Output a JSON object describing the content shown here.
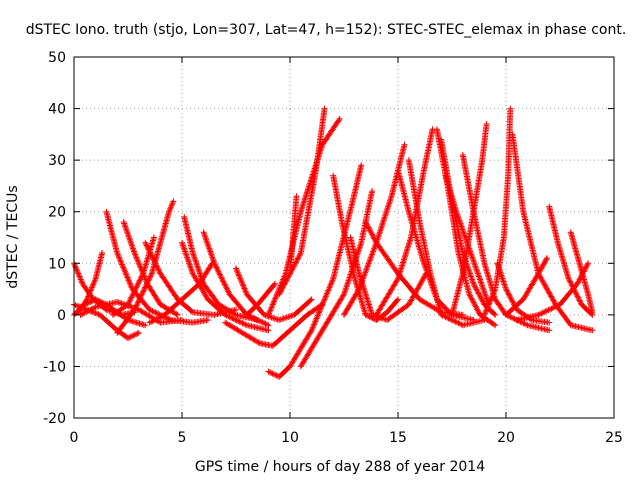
{
  "chart_data": {
    "type": "scatter",
    "title": "dSTEC Iono. truth (stjo, Lon=307, Lat=47, h=152): STEC-STEC_elemax in phase cont.",
    "xlabel": "GPS time / hours of day 288 of year 2014",
    "ylabel": "dSTEC  / TECUs",
    "xlim": [
      0,
      25
    ],
    "ylim": [
      -20,
      50
    ],
    "xticks": [
      "0",
      "5",
      "10",
      "15",
      "20",
      "25"
    ],
    "yticks": [
      "-20",
      "-10",
      "0",
      "10",
      "20",
      "30",
      "40",
      "50"
    ],
    "grid": true,
    "marker": "+",
    "color": "#ff0000",
    "arcs": [
      [
        [
          0.0,
          10.0
        ],
        [
          0.4,
          6.0
        ],
        [
          0.9,
          3.0
        ],
        [
          1.5,
          1.0
        ],
        [
          2.2,
          0.0
        ],
        [
          2.8,
          0.5
        ]
      ],
      [
        [
          0.0,
          0.0
        ],
        [
          0.5,
          2.0
        ],
        [
          1.0,
          3.0
        ],
        [
          1.5,
          2.0
        ],
        [
          2.5,
          -1.0
        ],
        [
          3.3,
          -2.0
        ]
      ],
      [
        [
          0.0,
          2.0
        ],
        [
          0.6,
          1.0
        ],
        [
          1.2,
          0.0
        ],
        [
          2.0,
          -3.0
        ],
        [
          2.5,
          -4.5
        ],
        [
          3.0,
          -3.5
        ]
      ],
      [
        [
          0.2,
          0.5
        ],
        [
          0.6,
          3.0
        ],
        [
          1.0,
          7.0
        ],
        [
          1.3,
          12.0
        ]
      ],
      [
        [
          0.3,
          0.0
        ],
        [
          1.0,
          1.5
        ],
        [
          2.0,
          2.5
        ],
        [
          3.0,
          1.0
        ],
        [
          4.0,
          -1.5
        ],
        [
          5.0,
          -1.0
        ]
      ],
      [
        [
          1.5,
          20.0
        ],
        [
          2.0,
          12.0
        ],
        [
          2.7,
          5.0
        ],
        [
          3.5,
          1.0
        ],
        [
          4.5,
          -1.0
        ],
        [
          5.5,
          -1.5
        ],
        [
          6.2,
          -1.0
        ]
      ],
      [
        [
          2.3,
          18.0
        ],
        [
          2.8,
          12.0
        ],
        [
          3.4,
          6.0
        ],
        [
          4.0,
          2.0
        ],
        [
          4.8,
          0.0
        ]
      ],
      [
        [
          1.8,
          0.0
        ],
        [
          2.5,
          2.0
        ],
        [
          3.2,
          8.0
        ],
        [
          3.7,
          15.0
        ]
      ],
      [
        [
          2.0,
          -3.5
        ],
        [
          2.8,
          1.0
        ],
        [
          3.6,
          8.0
        ],
        [
          4.0,
          14.0
        ],
        [
          4.4,
          20.0
        ],
        [
          4.6,
          22.0
        ]
      ],
      [
        [
          3.3,
          14.0
        ],
        [
          4.0,
          8.0
        ],
        [
          4.8,
          3.0
        ],
        [
          5.5,
          0.5
        ],
        [
          6.5,
          0.0
        ],
        [
          7.5,
          1.0
        ]
      ],
      [
        [
          3.5,
          -1.5
        ],
        [
          4.2,
          0.0
        ],
        [
          5.0,
          3.0
        ],
        [
          5.8,
          6.0
        ],
        [
          6.4,
          10.0
        ]
      ],
      [
        [
          5.1,
          19.0
        ],
        [
          5.5,
          12.0
        ],
        [
          6.0,
          6.0
        ],
        [
          6.7,
          2.0
        ],
        [
          7.5,
          0.0
        ],
        [
          8.5,
          -1.0
        ]
      ],
      [
        [
          5.0,
          14.0
        ],
        [
          5.5,
          8.0
        ],
        [
          6.2,
          3.0
        ],
        [
          7.0,
          0.0
        ],
        [
          8.0,
          -2.0
        ],
        [
          9.0,
          -3.0
        ]
      ],
      [
        [
          6.0,
          16.0
        ],
        [
          6.5,
          10.0
        ],
        [
          7.2,
          4.0
        ],
        [
          8.0,
          0.0
        ],
        [
          9.0,
          -2.0
        ]
      ],
      [
        [
          7.5,
          9.0
        ],
        [
          8.0,
          4.0
        ],
        [
          8.8,
          0.0
        ],
        [
          9.5,
          -1.0
        ],
        [
          10.2,
          0.0
        ],
        [
          11.0,
          3.0
        ]
      ],
      [
        [
          7.0,
          -1.5
        ],
        [
          8.0,
          -4.0
        ],
        [
          8.6,
          -5.5
        ],
        [
          9.2,
          -6.0
        ],
        [
          10.0,
          -3.0
        ],
        [
          10.8,
          0.0
        ],
        [
          11.5,
          2.0
        ]
      ],
      [
        [
          8.0,
          0.0
        ],
        [
          8.5,
          2.0
        ],
        [
          9.0,
          4.5
        ],
        [
          9.3,
          6.0
        ]
      ],
      [
        [
          9.5,
          4.0
        ],
        [
          10.5,
          12.0
        ],
        [
          11.2,
          28.0
        ],
        [
          11.6,
          40.0
        ]
      ],
      [
        [
          9.0,
          0.0
        ],
        [
          9.8,
          8.0
        ],
        [
          10.5,
          20.0
        ],
        [
          11.5,
          33.0
        ],
        [
          12.3,
          38.0
        ]
      ],
      [
        [
          9.0,
          -11.0
        ],
        [
          9.5,
          -12.0
        ],
        [
          10.0,
          -10.0
        ],
        [
          11.0,
          -3.0
        ],
        [
          12.0,
          7.0
        ],
        [
          12.9,
          22.0
        ],
        [
          13.3,
          29.0
        ]
      ],
      [
        [
          10.0,
          8.0
        ],
        [
          10.3,
          23.0
        ]
      ],
      [
        [
          10.5,
          -10.0
        ],
        [
          11.5,
          -3.0
        ],
        [
          12.5,
          4.0
        ],
        [
          13.3,
          14.0
        ],
        [
          13.8,
          24.0
        ]
      ],
      [
        [
          12.0,
          27.0
        ],
        [
          12.4,
          18.0
        ],
        [
          13.0,
          7.0
        ],
        [
          13.5,
          0.0
        ],
        [
          14.0,
          -1.0
        ],
        [
          14.5,
          0.5
        ],
        [
          15.0,
          3.0
        ]
      ],
      [
        [
          12.5,
          0.0
        ],
        [
          13.2,
          5.0
        ],
        [
          14.0,
          14.0
        ],
        [
          14.7,
          23.0
        ],
        [
          15.3,
          33.0
        ]
      ],
      [
        [
          12.8,
          15.0
        ],
        [
          13.2,
          8.0
        ],
        [
          13.8,
          0.0
        ],
        [
          14.5,
          -1.0
        ],
        [
          15.5,
          2.0
        ],
        [
          16.3,
          8.0
        ]
      ],
      [
        [
          13.5,
          18.0
        ],
        [
          14.0,
          14.0
        ],
        [
          15.0,
          8.0
        ],
        [
          16.0,
          3.0
        ],
        [
          17.0,
          0.5
        ],
        [
          18.0,
          0.0
        ]
      ],
      [
        [
          15.0,
          28.0
        ],
        [
          15.5,
          20.0
        ],
        [
          16.2,
          10.0
        ],
        [
          16.8,
          3.0
        ],
        [
          17.5,
          0.0
        ],
        [
          18.5,
          -1.0
        ]
      ],
      [
        [
          15.5,
          30.0
        ],
        [
          16.0,
          18.0
        ],
        [
          16.5,
          8.0
        ],
        [
          17.0,
          0.0
        ],
        [
          18.0,
          -2.0
        ],
        [
          19.0,
          -1.0
        ]
      ],
      [
        [
          14.0,
          0.0
        ],
        [
          15.0,
          7.0
        ],
        [
          15.6,
          15.0
        ],
        [
          16.2,
          28.0
        ],
        [
          16.6,
          36.0
        ]
      ],
      [
        [
          16.8,
          36.0
        ],
        [
          17.3,
          25.0
        ],
        [
          17.8,
          12.0
        ],
        [
          18.3,
          4.0
        ],
        [
          18.8,
          0.0
        ],
        [
          19.5,
          -2.0
        ]
      ],
      [
        [
          17.0,
          34.0
        ],
        [
          17.5,
          22.0
        ],
        [
          18.0,
          12.0
        ],
        [
          18.5,
          6.0
        ],
        [
          19.0,
          2.0
        ],
        [
          19.5,
          0.0
        ]
      ],
      [
        [
          17.2,
          27.0
        ],
        [
          17.7,
          20.0
        ],
        [
          18.2,
          14.0
        ],
        [
          18.7,
          8.0
        ],
        [
          19.2,
          2.0
        ]
      ],
      [
        [
          17.5,
          0.0
        ],
        [
          18.0,
          8.0
        ],
        [
          18.5,
          20.0
        ],
        [
          18.9,
          30.0
        ],
        [
          19.1,
          37.0
        ]
      ],
      [
        [
          18.0,
          31.0
        ],
        [
          18.5,
          20.0
        ],
        [
          19.0,
          10.0
        ],
        [
          19.5,
          3.0
        ],
        [
          20.0,
          0.0
        ],
        [
          21.0,
          -2.0
        ],
        [
          22.0,
          -3.0
        ]
      ],
      [
        [
          19.0,
          0.0
        ],
        [
          19.5,
          5.0
        ],
        [
          19.9,
          15.0
        ],
        [
          20.1,
          27.0
        ],
        [
          20.2,
          40.0
        ]
      ],
      [
        [
          20.3,
          35.0
        ],
        [
          20.8,
          20.0
        ],
        [
          21.5,
          8.0
        ],
        [
          22.3,
          2.0
        ],
        [
          23.0,
          -2.0
        ],
        [
          24.0,
          -3.0
        ]
      ],
      [
        [
          19.6,
          10.0
        ],
        [
          20.0,
          5.0
        ],
        [
          20.5,
          1.0
        ],
        [
          21.2,
          -1.0
        ],
        [
          22.0,
          -1.5
        ]
      ],
      [
        [
          20.0,
          0.0
        ],
        [
          20.8,
          3.0
        ],
        [
          21.5,
          8.0
        ],
        [
          21.9,
          11.0
        ]
      ],
      [
        [
          22.0,
          21.0
        ],
        [
          22.4,
          14.0
        ],
        [
          22.9,
          7.0
        ],
        [
          23.5,
          2.0
        ],
        [
          24.0,
          0.0
        ]
      ],
      [
        [
          23.0,
          16.0
        ],
        [
          23.4,
          10.0
        ],
        [
          23.8,
          4.0
        ],
        [
          24.0,
          0.5
        ]
      ],
      [
        [
          20.5,
          -1.0
        ],
        [
          21.5,
          0.0
        ],
        [
          22.5,
          2.0
        ],
        [
          23.3,
          6.0
        ],
        [
          23.8,
          10.0
        ]
      ]
    ]
  }
}
